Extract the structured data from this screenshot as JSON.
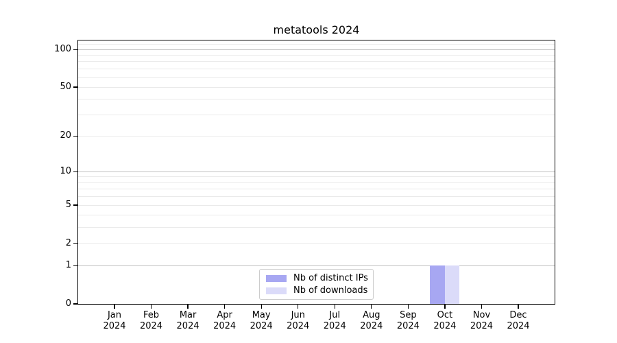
{
  "chart_data": {
    "type": "bar",
    "title": "metatools 2024",
    "categories": [
      {
        "month": "Jan",
        "year": "2024"
      },
      {
        "month": "Feb",
        "year": "2024"
      },
      {
        "month": "Mar",
        "year": "2024"
      },
      {
        "month": "Apr",
        "year": "2024"
      },
      {
        "month": "May",
        "year": "2024"
      },
      {
        "month": "Jun",
        "year": "2024"
      },
      {
        "month": "Jul",
        "year": "2024"
      },
      {
        "month": "Aug",
        "year": "2024"
      },
      {
        "month": "Sep",
        "year": "2024"
      },
      {
        "month": "Oct",
        "year": "2024"
      },
      {
        "month": "Nov",
        "year": "2024"
      },
      {
        "month": "Dec",
        "year": "2024"
      }
    ],
    "series": [
      {
        "name": "Nb of distinct IPs",
        "color": "#a7a7f2",
        "values": [
          0,
          0,
          0,
          0,
          0,
          0,
          0,
          0,
          0,
          1,
          0,
          0
        ]
      },
      {
        "name": "Nb of downloads",
        "color": "#dbdbf9",
        "values": [
          0,
          0,
          0,
          0,
          0,
          0,
          0,
          0,
          0,
          1,
          0,
          0
        ]
      }
    ],
    "yscale": "log1p",
    "ylim": [
      0,
      118
    ],
    "yticks": [
      0,
      1,
      2,
      5,
      10,
      20,
      50,
      100
    ],
    "major_grid_values": [
      1,
      10,
      100
    ],
    "minor_grid_values": [
      2,
      3,
      4,
      5,
      6,
      7,
      8,
      9,
      20,
      30,
      40,
      50,
      60,
      70,
      80,
      90,
      110
    ],
    "grid": true,
    "legend_position": "lower center",
    "colors": {
      "major_grid": "#c2c2c2",
      "minor_grid": "#eaeaea",
      "axis": "#000000",
      "background": "#ffffff"
    }
  }
}
